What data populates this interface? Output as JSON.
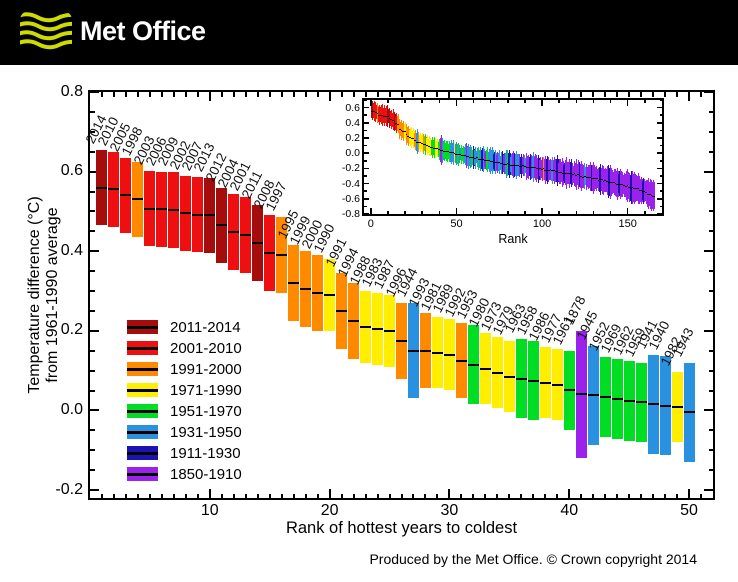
{
  "header": {
    "brand": "Met Office"
  },
  "footer": {
    "credit": "Produced by the Met Office. © Crown copyright 2014"
  },
  "chart_data": {
    "type": "bar",
    "title": "",
    "xlabel": "Rank of hottest years to coldest",
    "ylabel_line1": "Temperature difference (°C)",
    "ylabel_line2": "from 1961-1990 average",
    "xlim": [
      0,
      52
    ],
    "ylim": [
      -0.22,
      0.8
    ],
    "x_ticks": [
      10,
      20,
      30,
      40,
      50
    ],
    "y_ticks": [
      "0.8",
      "0.6",
      "0.4",
      "0.2",
      "0.0",
      "-0.2"
    ],
    "grid": false,
    "legend_position": "inside-left",
    "groups": [
      {
        "label": "2011-2014",
        "key": "darkred",
        "color": "#a50d0d"
      },
      {
        "label": "2001-2010",
        "key": "red",
        "color": "#ee1010"
      },
      {
        "label": "1991-2000",
        "key": "orange",
        "color": "#ff8a00"
      },
      {
        "label": "1971-1990",
        "key": "yellow",
        "color": "#ffee00"
      },
      {
        "label": "1951-1970",
        "key": "green",
        "color": "#00dd22"
      },
      {
        "label": "1931-1950",
        "key": "blue",
        "color": "#2a90e0"
      },
      {
        "label": "1911-1930",
        "key": "navy",
        "color": "#1c13b3"
      },
      {
        "label": "1850-1910",
        "key": "purple",
        "color": "#9b22ea"
      }
    ],
    "bars": [
      {
        "rank": 1,
        "year": "2014",
        "v": 0.56,
        "e": 0.095,
        "g": "darkred"
      },
      {
        "rank": 2,
        "year": "2010",
        "v": 0.555,
        "e": 0.095,
        "g": "red"
      },
      {
        "rank": 3,
        "year": "2005",
        "v": 0.54,
        "e": 0.095,
        "g": "red"
      },
      {
        "rank": 4,
        "year": "1998",
        "v": 0.53,
        "e": 0.095,
        "g": "orange"
      },
      {
        "rank": 5,
        "year": "2003",
        "v": 0.507,
        "e": 0.095,
        "g": "red"
      },
      {
        "rank": 6,
        "year": "2006",
        "v": 0.505,
        "e": 0.095,
        "g": "red"
      },
      {
        "rank": 7,
        "year": "2009",
        "v": 0.503,
        "e": 0.095,
        "g": "red"
      },
      {
        "rank": 8,
        "year": "2002",
        "v": 0.495,
        "e": 0.095,
        "g": "red"
      },
      {
        "rank": 9,
        "year": "2007",
        "v": 0.492,
        "e": 0.095,
        "g": "red"
      },
      {
        "rank": 10,
        "year": "2013",
        "v": 0.49,
        "e": 0.095,
        "g": "darkred"
      },
      {
        "rank": 11,
        "year": "2012",
        "v": 0.465,
        "e": 0.095,
        "g": "darkred"
      },
      {
        "rank": 12,
        "year": "2004",
        "v": 0.448,
        "e": 0.095,
        "g": "red"
      },
      {
        "rank": 13,
        "year": "2001",
        "v": 0.44,
        "e": 0.095,
        "g": "red"
      },
      {
        "rank": 14,
        "year": "2011",
        "v": 0.42,
        "e": 0.095,
        "g": "darkred"
      },
      {
        "rank": 15,
        "year": "2008",
        "v": 0.395,
        "e": 0.095,
        "g": "red"
      },
      {
        "rank": 16,
        "year": "1997",
        "v": 0.39,
        "e": 0.095,
        "g": "orange"
      },
      {
        "rank": 17,
        "year": "1995",
        "v": 0.32,
        "e": 0.095,
        "g": "orange"
      },
      {
        "rank": 18,
        "year": "1999",
        "v": 0.305,
        "e": 0.095,
        "g": "orange"
      },
      {
        "rank": 19,
        "year": "2000",
        "v": 0.295,
        "e": 0.095,
        "g": "orange"
      },
      {
        "rank": 20,
        "year": "1990",
        "v": 0.29,
        "e": 0.09,
        "g": "yellow"
      },
      {
        "rank": 21,
        "year": "1991",
        "v": 0.25,
        "e": 0.095,
        "g": "orange"
      },
      {
        "rank": 22,
        "year": "1994",
        "v": 0.225,
        "e": 0.095,
        "g": "orange"
      },
      {
        "rank": 23,
        "year": "1988",
        "v": 0.21,
        "e": 0.09,
        "g": "yellow"
      },
      {
        "rank": 24,
        "year": "1983",
        "v": 0.205,
        "e": 0.09,
        "g": "yellow"
      },
      {
        "rank": 25,
        "year": "1987",
        "v": 0.2,
        "e": 0.09,
        "g": "yellow"
      },
      {
        "rank": 26,
        "year": "1996",
        "v": 0.175,
        "e": 0.095,
        "g": "orange"
      },
      {
        "rank": 27,
        "year": "1944",
        "v": 0.15,
        "e": 0.12,
        "g": "blue"
      },
      {
        "rank": 28,
        "year": "1993",
        "v": 0.15,
        "e": 0.095,
        "g": "orange"
      },
      {
        "rank": 29,
        "year": "1981",
        "v": 0.145,
        "e": 0.09,
        "g": "yellow"
      },
      {
        "rank": 30,
        "year": "1989",
        "v": 0.14,
        "e": 0.09,
        "g": "yellow"
      },
      {
        "rank": 31,
        "year": "1992",
        "v": 0.125,
        "e": 0.095,
        "g": "orange"
      },
      {
        "rank": 32,
        "year": "1953",
        "v": 0.115,
        "e": 0.1,
        "g": "green"
      },
      {
        "rank": 33,
        "year": "1980",
        "v": 0.105,
        "e": 0.09,
        "g": "yellow"
      },
      {
        "rank": 34,
        "year": "1973",
        "v": 0.095,
        "e": 0.09,
        "g": "yellow"
      },
      {
        "rank": 35,
        "year": "1979",
        "v": 0.085,
        "e": 0.09,
        "g": "yellow"
      },
      {
        "rank": 36,
        "year": "1963",
        "v": 0.08,
        "e": 0.1,
        "g": "green"
      },
      {
        "rank": 37,
        "year": "1958",
        "v": 0.075,
        "e": 0.1,
        "g": "green"
      },
      {
        "rank": 38,
        "year": "1986",
        "v": 0.07,
        "e": 0.09,
        "g": "yellow"
      },
      {
        "rank": 39,
        "year": "1977",
        "v": 0.065,
        "e": 0.09,
        "g": "yellow"
      },
      {
        "rank": 40,
        "year": "1961",
        "v": 0.05,
        "e": 0.1,
        "g": "green"
      },
      {
        "rank": 41,
        "year": "1878",
        "v": 0.04,
        "e": 0.16,
        "g": "purple"
      },
      {
        "rank": 42,
        "year": "1945",
        "v": 0.038,
        "e": 0.125,
        "g": "blue"
      },
      {
        "rank": 43,
        "year": "1952",
        "v": 0.033,
        "e": 0.1,
        "g": "green"
      },
      {
        "rank": 44,
        "year": "1969",
        "v": 0.028,
        "e": 0.1,
        "g": "green"
      },
      {
        "rank": 45,
        "year": "1962",
        "v": 0.024,
        "e": 0.1,
        "g": "green"
      },
      {
        "rank": 46,
        "year": "1959",
        "v": 0.02,
        "e": 0.1,
        "g": "green"
      },
      {
        "rank": 47,
        "year": "1941",
        "v": 0.015,
        "e": 0.125,
        "g": "blue"
      },
      {
        "rank": 48,
        "year": "1940",
        "v": 0.012,
        "e": 0.125,
        "g": "blue"
      },
      {
        "rank": 49,
        "year": "1982",
        "v": 0.008,
        "e": 0.088,
        "g": "yellow"
      },
      {
        "rank": 50,
        "year": "1943",
        "v": -0.005,
        "e": 0.125,
        "g": "blue"
      }
    ],
    "inset": {
      "xlabel": "Rank",
      "x_ticks": [
        0,
        50,
        100,
        150
      ],
      "y_ticks": [
        "0.6",
        "0.4",
        "0.2",
        "0.0",
        "-0.2",
        "-0.4",
        "-0.6",
        "-0.8"
      ],
      "xlim": [
        -4,
        170
      ],
      "ylim": [
        -0.8,
        0.7
      ],
      "n": 165,
      "value_points": [
        [
          50,
          -0.005
        ],
        [
          60,
          -0.05
        ],
        [
          75,
          -0.12
        ],
        [
          90,
          -0.17
        ],
        [
          105,
          -0.22
        ],
        [
          120,
          -0.28
        ],
        [
          135,
          -0.35
        ],
        [
          150,
          -0.43
        ],
        [
          160,
          -0.5
        ],
        [
          165,
          -0.56
        ]
      ],
      "err_points": [
        [
          50,
          0.1
        ],
        [
          60,
          0.105
        ],
        [
          90,
          0.125
        ],
        [
          120,
          0.14
        ],
        [
          165,
          0.155
        ]
      ],
      "color_seq_51up": [
        "GBGGBPBBGNBBGBNBPGBB",
        "BNBPBBNPBGNBPNBBPNPB",
        "PPNPBPPNPPOPNPPBPPNP",
        "PPNPPPNPPPPNPPBPPPNP",
        "PPPNPPPPNPPPPPNPPPPP",
        "PNPPPPPPNPPPPPP"
      ]
    }
  }
}
